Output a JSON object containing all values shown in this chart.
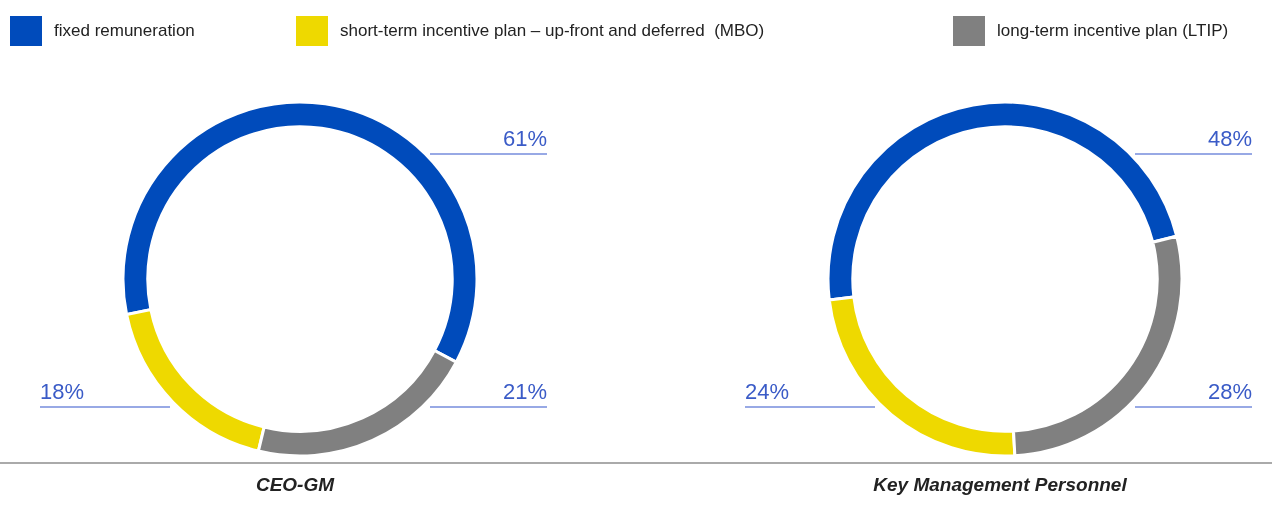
{
  "chart_data": [
    {
      "type": "donut",
      "title": "CEO-GM",
      "categories": [
        "fixed remuneration",
        "short-term incentive plan – up-front and deferred  (MBO)",
        "long-term incentive plan (LTIP)"
      ],
      "values": [
        61,
        18,
        21
      ],
      "colors": [
        "#004bbb",
        "#eed900",
        "#808080"
      ],
      "value_labels": [
        "61%",
        "18%",
        "21%"
      ],
      "legend": "top"
    },
    {
      "type": "donut",
      "title": "Key Management Personnel",
      "categories": [
        null,
        null,
        null
      ],
      "values": [
        48,
        24,
        28
      ],
      "colors": [
        "#004bbb",
        "#eed900",
        "#808080"
      ],
      "value_labels": [
        "48%",
        "24%",
        "28%"
      ]
    }
  ]
}
